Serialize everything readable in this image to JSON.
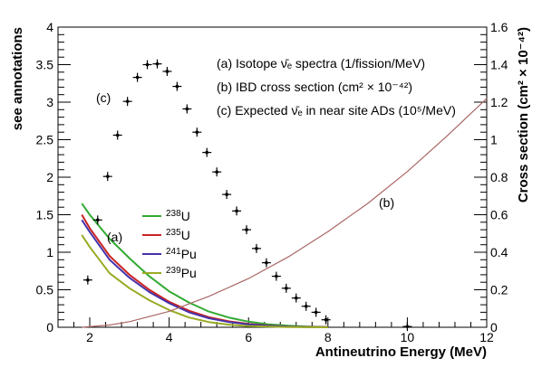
{
  "chart_data": {
    "type": "line",
    "xlabel": "Antineutrino Energy (MeV)",
    "ylabel": "see annotations",
    "y2label": "Cross section (cm² × 10⁻⁴²)",
    "xlim": [
      1.2,
      12
    ],
    "ylim": [
      0,
      4
    ],
    "y2lim": [
      0,
      1.6
    ],
    "xticks": [
      "2",
      "4",
      "6",
      "8",
      "10",
      "12"
    ],
    "yticks": [
      "0",
      "0.5",
      "1",
      "1.5",
      "2",
      "2.5",
      "3",
      "3.5",
      "4"
    ],
    "y2ticks": [
      "0",
      "0.2",
      "0.4",
      "0.6",
      "0.8",
      "1",
      "1.2",
      "1.4",
      "1.6"
    ],
    "legend_location": "lower-left",
    "annotations": [
      {
        "label": "(a)",
        "text": "Isotope ν̄ₑ spectra (1/fission/MeV)"
      },
      {
        "label": "(b)",
        "text": "IBD cross section (cm² × 10⁻⁴²)"
      },
      {
        "label": "(c)",
        "text": "Expected ν̄ₑ in near site ADs (10⁵/MeV)"
      }
    ],
    "curve_labels": [
      "(a)",
      "(b)",
      "(c)"
    ],
    "series": [
      {
        "name": "238U",
        "name_mass": "238",
        "name_elem": "U",
        "color": "#33aa33",
        "x": [
          1.8,
          2.0,
          2.5,
          3.0,
          3.5,
          4.0,
          4.5,
          5.0,
          5.5,
          6.0,
          6.5,
          7.0,
          7.5,
          8.0
        ],
        "y": [
          1.65,
          1.5,
          1.18,
          0.92,
          0.68,
          0.48,
          0.33,
          0.21,
          0.13,
          0.075,
          0.04,
          0.02,
          0.01,
          0.003
        ]
      },
      {
        "name": "235U",
        "name_mass": "235",
        "name_elem": "U",
        "color": "#cc2222",
        "x": [
          1.8,
          2.0,
          2.5,
          3.0,
          3.5,
          4.0,
          4.5,
          5.0,
          5.5,
          6.0,
          6.5,
          7.0,
          7.5,
          8.0
        ],
        "y": [
          1.5,
          1.32,
          0.95,
          0.7,
          0.5,
          0.34,
          0.22,
          0.135,
          0.08,
          0.045,
          0.023,
          0.01,
          0.005,
          0.002
        ]
      },
      {
        "name": "241Pu",
        "name_mass": "241",
        "name_elem": "Pu",
        "color": "#4433aa",
        "x": [
          1.8,
          2.0,
          2.5,
          3.0,
          3.5,
          4.0,
          4.5,
          5.0,
          5.5,
          6.0,
          6.5,
          7.0,
          7.5,
          8.0
        ],
        "y": [
          1.43,
          1.27,
          0.9,
          0.66,
          0.47,
          0.32,
          0.2,
          0.12,
          0.07,
          0.038,
          0.019,
          0.008,
          0.004,
          0.001
        ]
      },
      {
        "name": "239Pu",
        "name_mass": "239",
        "name_elem": "Pu",
        "color": "#99aa22",
        "x": [
          1.8,
          2.0,
          2.5,
          3.0,
          3.5,
          4.0,
          4.5,
          5.0,
          5.5,
          6.0,
          6.5,
          7.0,
          7.5,
          8.0
        ],
        "y": [
          1.23,
          1.07,
          0.72,
          0.52,
          0.36,
          0.23,
          0.13,
          0.07,
          0.035,
          0.017,
          0.008,
          0.003,
          0.001,
          0.0
        ]
      },
      {
        "name": "IBD cross section",
        "color": "#aa6666",
        "axis": "right",
        "x": [
          1.806,
          2.5,
          3.0,
          4.0,
          5.0,
          6.0,
          7.0,
          8.0,
          9.0,
          10.0,
          11.0,
          12.0
        ],
        "y": [
          0.0,
          0.012,
          0.03,
          0.085,
          0.165,
          0.26,
          0.375,
          0.51,
          0.66,
          0.83,
          1.02,
          1.22
        ]
      },
      {
        "name": "Expected spectrum",
        "type": "points",
        "color": "#000000",
        "x": [
          1.95,
          2.2,
          2.45,
          2.7,
          2.95,
          3.2,
          3.45,
          3.7,
          3.95,
          4.2,
          4.45,
          4.7,
          4.95,
          5.2,
          5.45,
          5.7,
          5.95,
          6.2,
          6.45,
          6.7,
          6.95,
          7.2,
          7.45,
          7.7,
          7.95,
          10.0
        ],
        "y": [
          0.63,
          1.43,
          2.01,
          2.56,
          3.01,
          3.33,
          3.5,
          3.51,
          3.41,
          3.21,
          2.91,
          2.6,
          2.33,
          2.07,
          1.77,
          1.55,
          1.3,
          1.05,
          0.86,
          0.68,
          0.52,
          0.39,
          0.28,
          0.2,
          0.1,
          0.01
        ]
      }
    ]
  }
}
